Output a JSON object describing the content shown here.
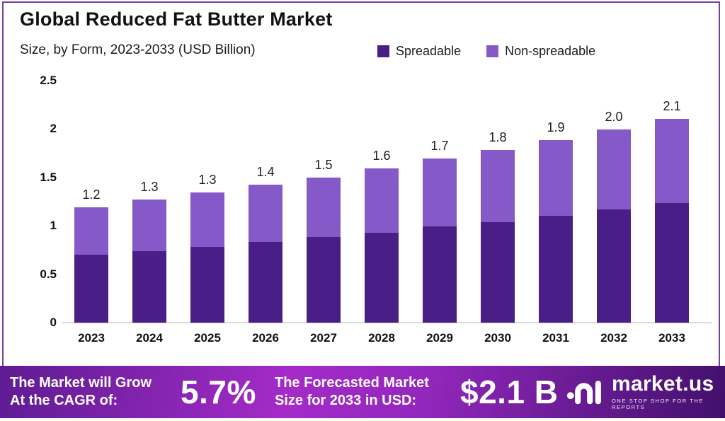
{
  "header": {
    "title": "Global Reduced Fat Butter Market",
    "subtitle": "Size, by Form, 2023-2033 (USD Billion)"
  },
  "legend": [
    {
      "label": "Spreadable",
      "color": "#4A1E87"
    },
    {
      "label": "Non-spreadable",
      "color": "#8659C9"
    }
  ],
  "chart_data": {
    "type": "bar",
    "stacked": true,
    "title": "Global Reduced Fat Butter Market",
    "subtitle": "Size, by Form, 2023-2033 (USD Billion)",
    "unit": "USD Billion",
    "categories": [
      "2023",
      "2024",
      "2025",
      "2026",
      "2027",
      "2028",
      "2029",
      "2030",
      "2031",
      "2032",
      "2033"
    ],
    "series": [
      {
        "name": "Spreadable",
        "color": "#4A1E87",
        "values": [
          0.7,
          0.74,
          0.78,
          0.83,
          0.88,
          0.93,
          0.99,
          1.04,
          1.1,
          1.17,
          1.23
        ]
      },
      {
        "name": "Non-spreadable",
        "color": "#8659C9",
        "values": [
          0.49,
          0.53,
          0.56,
          0.59,
          0.62,
          0.66,
          0.7,
          0.74,
          0.78,
          0.82,
          0.87
        ]
      }
    ],
    "total_labels": [
      "1.2",
      "1.3",
      "1.3",
      "1.4",
      "1.5",
      "1.6",
      "1.7",
      "1.8",
      "1.9",
      "2.0",
      "2.1"
    ],
    "xlabel": "",
    "ylabel": "",
    "ylim": [
      0,
      2.5
    ],
    "yticks": [
      {
        "value": 2.5,
        "label": "2.5"
      },
      {
        "value": 2.0,
        "label": "2"
      },
      {
        "value": 1.5,
        "label": "1.5"
      },
      {
        "value": 1.0,
        "label": "1"
      },
      {
        "value": 0.5,
        "label": "0.5"
      },
      {
        "value": 0.0,
        "label": "0"
      }
    ],
    "grid": false,
    "legend_position": "top-right"
  },
  "banner": {
    "cagr_label_line1": "The Market will Grow",
    "cagr_label_line2": "At the CAGR of:",
    "cagr_value": "5.7%",
    "forecast_label_line1": "The Forecasted Market",
    "forecast_label_line2": "Size for 2033 in USD:",
    "forecast_value": "$2.1 B",
    "logo_name": "market.us",
    "logo_tagline": "ONE STOP SHOP FOR THE REPORTS"
  },
  "colors": {
    "frame_border": "#7A3E9B",
    "spreadable": "#4A1E87",
    "non_spreadable": "#8659C9",
    "baseline": "#DADADA",
    "banner_gradient_left": "#5E1C92",
    "banner_gradient_mid": "#A42BC8",
    "banner_gradient_right": "#41106B",
    "text_dark": "#121212",
    "banner_text": "#FFFFFF"
  }
}
